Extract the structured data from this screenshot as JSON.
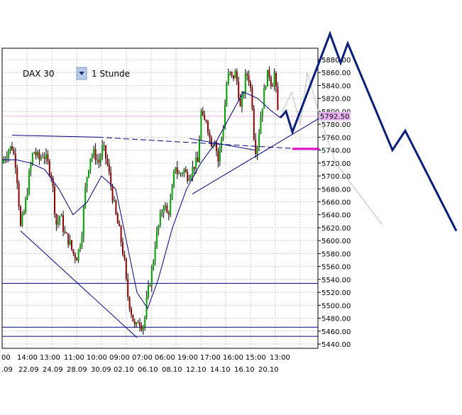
{
  "header": {
    "symbol": "DAX 30",
    "timeframe": "1 Stunde"
  },
  "current_price": {
    "label": "5792.50",
    "value": 5792.5,
    "color": "#e9b3f2"
  },
  "colors": {
    "bull": "#00a000",
    "bear": "#8b0000",
    "wick": "#000000",
    "ma": "#000080",
    "trend": "#000080",
    "projection": "#0a1f7a",
    "ghost": "#bfbfbf",
    "price_line": "#f3b2ee",
    "magenta_marker": "#e010c8",
    "grid": "#c8c8c8"
  },
  "chart_data": {
    "type": "candlestick",
    "title": "",
    "instrument": "DAX 30",
    "timeframe": "1 Stunde",
    "ylim": [
      5440,
      5900
    ],
    "y_ticks": [
      "5440.00",
      "5460.00",
      "5480.00",
      "5500.00",
      "5520.00",
      "5540.00",
      "5560.00",
      "5580.00",
      "5600.00",
      "5620.00",
      "5640.00",
      "5660.00",
      "5680.00",
      "5700.00",
      "5720.00",
      "5740.00",
      "5760.00",
      "5780.00",
      "5800.00",
      "5820.00",
      "5840.00",
      "5860.00",
      "5880.00"
    ],
    "y_tick_values": [
      5440,
      5460,
      5480,
      5500,
      5520,
      5540,
      5560,
      5580,
      5600,
      5620,
      5640,
      5660,
      5680,
      5700,
      5720,
      5740,
      5760,
      5780,
      5800,
      5820,
      5840,
      5860,
      5880
    ],
    "x_ticks_time": [
      "00",
      "14:00",
      "13:00",
      "11:00",
      "10:00",
      "09:00",
      "07:00",
      "06:00",
      "19:00",
      "17:00",
      "16:00",
      "15:00",
      "13:00"
    ],
    "x_ticks_date": [
      ".09",
      "22.09",
      "24.09",
      "28.09",
      "30.09",
      "02.10",
      "06.10",
      "08.10",
      "12.10",
      "14.10",
      "16.10",
      "20.10"
    ],
    "price_path": [
      [
        0,
        5720
      ],
      [
        8,
        5740
      ],
      [
        14,
        5745
      ],
      [
        20,
        5715
      ],
      [
        26,
        5620
      ],
      [
        32,
        5650
      ],
      [
        38,
        5700
      ],
      [
        44,
        5740
      ],
      [
        52,
        5725
      ],
      [
        58,
        5735
      ],
      [
        64,
        5720
      ],
      [
        70,
        5700
      ],
      [
        76,
        5625
      ],
      [
        82,
        5640
      ],
      [
        88,
        5610
      ],
      [
        94,
        5600
      ],
      [
        100,
        5580
      ],
      [
        106,
        5575
      ],
      [
        112,
        5610
      ],
      [
        118,
        5690
      ],
      [
        124,
        5730
      ],
      [
        130,
        5735
      ],
      [
        136,
        5720
      ],
      [
        142,
        5745
      ],
      [
        148,
        5720
      ],
      [
        154,
        5680
      ],
      [
        160,
        5640
      ],
      [
        166,
        5610
      ],
      [
        172,
        5570
      ],
      [
        176,
        5520
      ],
      [
        180,
        5500
      ],
      [
        184,
        5480
      ],
      [
        188,
        5460
      ],
      [
        192,
        5480
      ],
      [
        196,
        5470
      ],
      [
        200,
        5470
      ],
      [
        204,
        5510
      ],
      [
        208,
        5535
      ],
      [
        212,
        5560
      ],
      [
        216,
        5600
      ],
      [
        220,
        5620
      ],
      [
        224,
        5640
      ],
      [
        228,
        5660
      ],
      [
        232,
        5640
      ],
      [
        236,
        5650
      ],
      [
        240,
        5680
      ],
      [
        244,
        5720
      ],
      [
        248,
        5700
      ],
      [
        252,
        5705
      ],
      [
        256,
        5710
      ],
      [
        260,
        5700
      ],
      [
        264,
        5705
      ],
      [
        268,
        5710
      ],
      [
        272,
        5720
      ],
      [
        276,
        5720
      ],
      [
        280,
        5800
      ],
      [
        284,
        5780
      ],
      [
        288,
        5790
      ],
      [
        292,
        5760
      ],
      [
        296,
        5750
      ],
      [
        300,
        5760
      ],
      [
        304,
        5720
      ],
      [
        308,
        5750
      ],
      [
        312,
        5780
      ],
      [
        316,
        5840
      ],
      [
        320,
        5860
      ],
      [
        324,
        5850
      ],
      [
        328,
        5860
      ],
      [
        332,
        5840
      ],
      [
        336,
        5800
      ],
      [
        340,
        5830
      ],
      [
        344,
        5860
      ],
      [
        348,
        5850
      ],
      [
        352,
        5820
      ],
      [
        356,
        5740
      ],
      [
        360,
        5750
      ],
      [
        364,
        5790
      ],
      [
        368,
        5820
      ],
      [
        372,
        5850
      ],
      [
        376,
        5860
      ],
      [
        380,
        5840
      ],
      [
        384,
        5860
      ],
      [
        388,
        5800
      ],
      [
        392,
        5790
      ]
    ],
    "moving_average": [
      [
        0,
        5725
      ],
      [
        20,
        5725
      ],
      [
        40,
        5720
      ],
      [
        60,
        5710
      ],
      [
        80,
        5680
      ],
      [
        100,
        5640
      ],
      [
        120,
        5660
      ],
      [
        140,
        5700
      ],
      [
        160,
        5680
      ],
      [
        175,
        5600
      ],
      [
        190,
        5520
      ],
      [
        205,
        5495
      ],
      [
        220,
        5540
      ],
      [
        240,
        5620
      ],
      [
        260,
        5680
      ],
      [
        280,
        5720
      ],
      [
        300,
        5750
      ],
      [
        320,
        5790
      ],
      [
        340,
        5830
      ],
      [
        360,
        5820
      ],
      [
        380,
        5800
      ],
      [
        392,
        5790
      ]
    ],
    "trendlines": [
      {
        "name": "upper-horizontal",
        "points": [
          [
            14,
            5763
          ],
          [
            135,
            5760
          ]
        ],
        "style": "solid"
      },
      {
        "name": "upper-horizontal-ext",
        "points": [
          [
            135,
            5760
          ],
          [
            450,
            5740
          ]
        ],
        "style": "dashed"
      },
      {
        "name": "lower-left",
        "points": [
          [
            26,
            5615
          ],
          [
            190,
            5450
          ]
        ],
        "style": "solid"
      },
      {
        "name": "rising-support",
        "points": [
          [
            268,
            5672
          ],
          [
            448,
            5790
          ]
        ],
        "style": "solid"
      },
      {
        "name": "upper-lower",
        "points": [
          [
            264,
            5758
          ],
          [
            356,
            5740
          ]
        ],
        "style": "solid"
      }
    ],
    "horizontal_levels": [
      5534,
      5466,
      5452
    ],
    "projection": [
      [
        392,
        5790
      ],
      [
        400,
        5800
      ],
      [
        409,
        5768
      ],
      [
        462,
        5920
      ],
      [
        477,
        5875
      ],
      [
        487,
        5905
      ],
      [
        550,
        5740
      ],
      [
        568,
        5770
      ],
      [
        640,
        5615
      ]
    ],
    "ghost_projection": [
      [
        395,
        5800
      ],
      [
        408,
        5830
      ],
      [
        420,
        5780
      ],
      [
        430,
        5860
      ],
      [
        448,
        5790
      ],
      [
        470,
        5720
      ],
      [
        535,
        5625
      ]
    ],
    "magenta_level": 5742
  }
}
